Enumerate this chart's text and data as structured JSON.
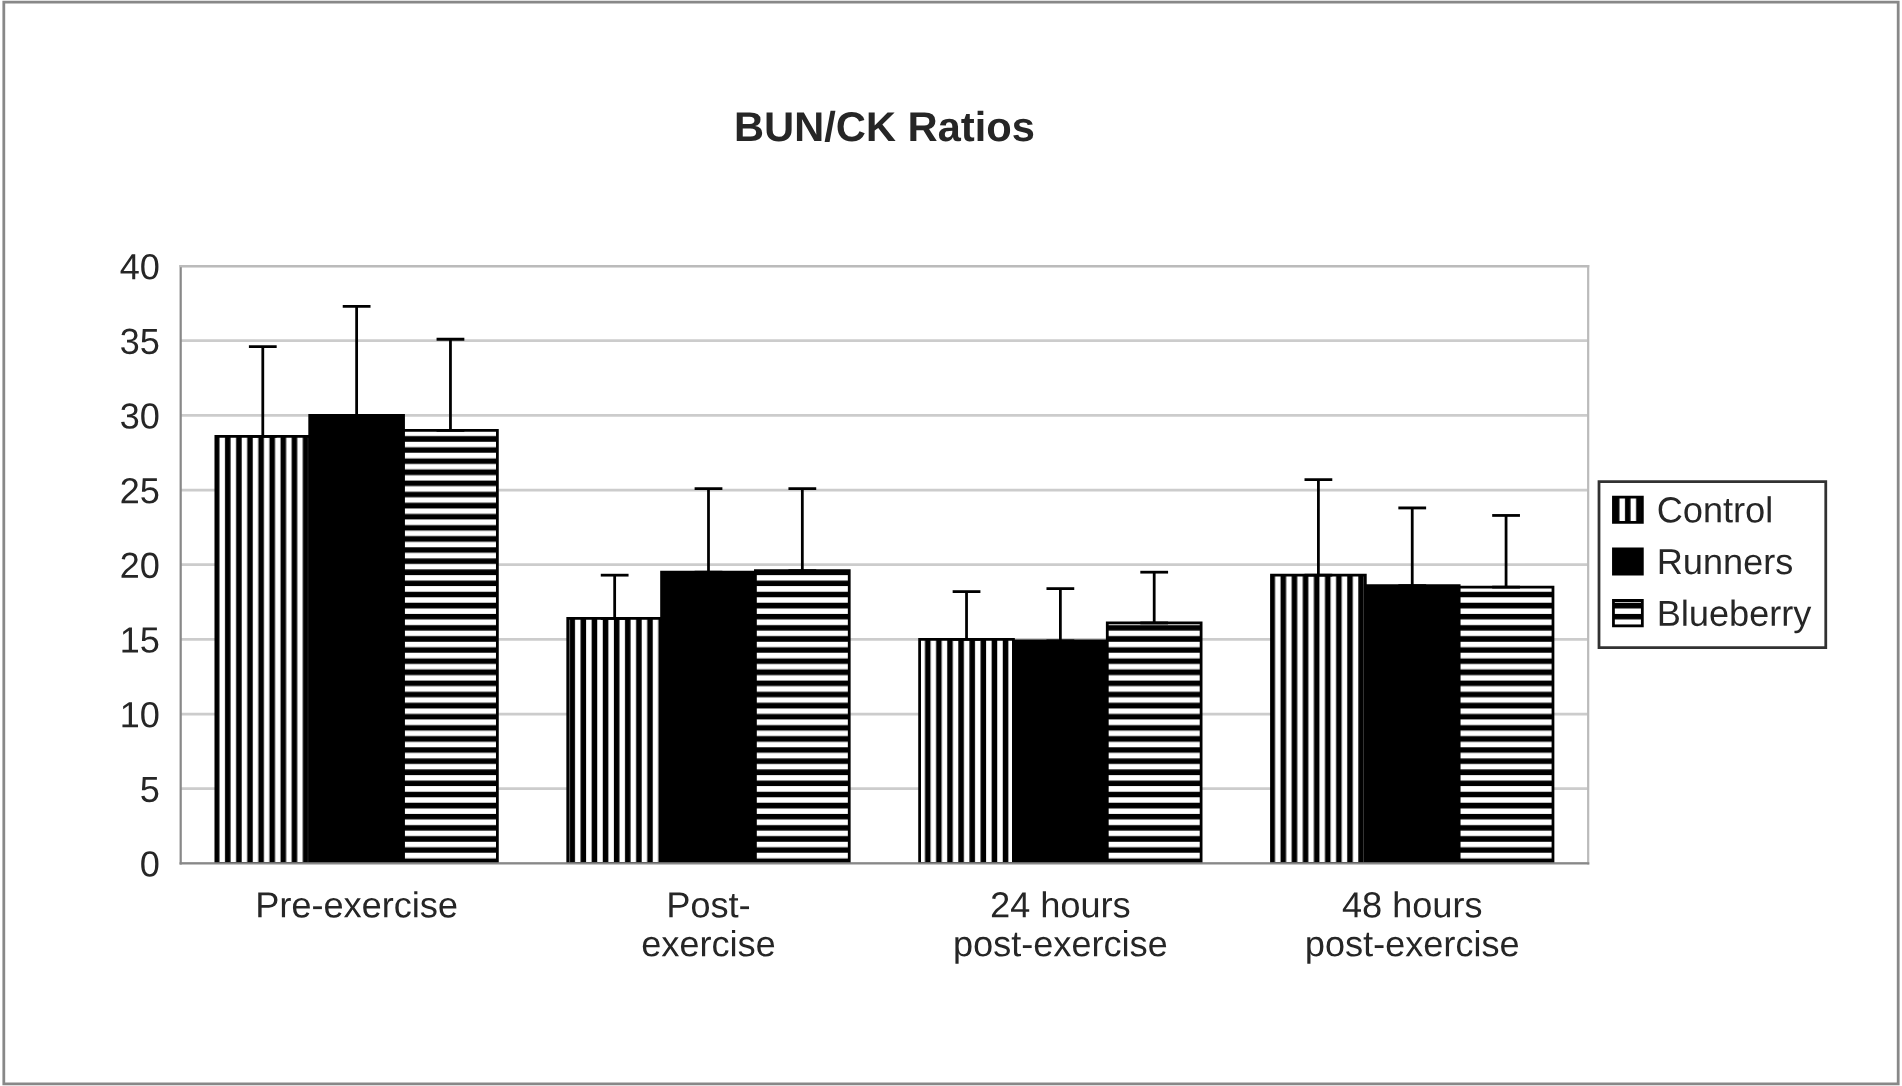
{
  "chart_data": {
    "type": "bar",
    "title": "BUN/CK Ratios",
    "categories": [
      "Pre-exercise",
      "Post-\nexercise",
      "24 hours\npost-exercise",
      "48 hours\npost-exercise"
    ],
    "series": [
      {
        "name": "Control",
        "color": "#000000",
        "values": [
          28.6,
          16.4,
          15.0,
          19.3
        ],
        "errors": [
          [
            28.6,
            34.6
          ],
          [
            16.4,
            19.3
          ],
          [
            15.0,
            18.2
          ],
          [
            19.3,
            25.7
          ]
        ]
      },
      {
        "name": "Runners",
        "color": "#000000",
        "values": [
          30.0,
          19.5,
          14.9,
          18.6
        ],
        "errors": [
          [
            30.0,
            37.3
          ],
          [
            19.5,
            25.1
          ],
          [
            14.9,
            18.4
          ],
          [
            18.6,
            23.8
          ]
        ]
      },
      {
        "name": "Blueberry",
        "color": "#000000",
        "values": [
          29.0,
          19.6,
          16.1,
          18.5
        ],
        "errors": [
          [
            29.0,
            35.1
          ],
          [
            19.6,
            25.1
          ],
          [
            16.1,
            19.5
          ],
          [
            18.5,
            23.3
          ]
        ]
      }
    ],
    "ylim": [
      0,
      40
    ],
    "yticks": [
      0,
      5,
      10,
      15,
      20,
      25,
      30,
      35,
      40
    ],
    "grid": "y",
    "legend": "right"
  }
}
